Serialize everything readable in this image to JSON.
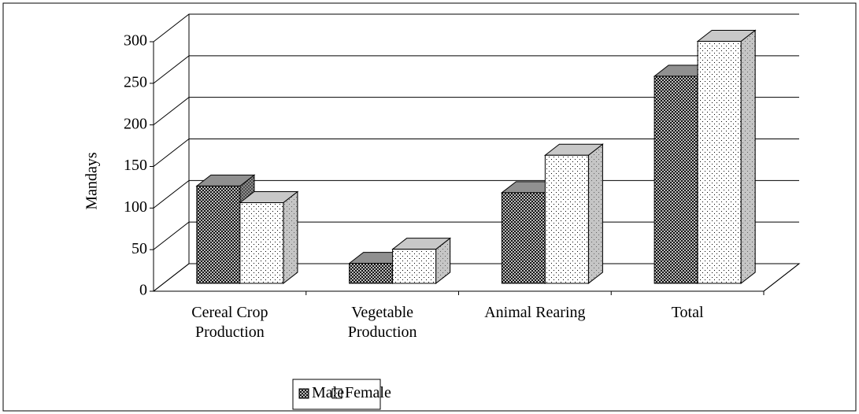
{
  "chart_data": {
    "type": "bar3d",
    "y_label": "Mandays",
    "categories": [
      "Cereal Crop Production",
      "Vegetable Production",
      "Animal Rearing",
      "Total"
    ],
    "series": [
      {
        "name": "Male",
        "color": "#808080",
        "values": [
          117,
          24,
          109,
          249
        ]
      },
      {
        "name": "Female",
        "color": "#ffffff",
        "values": [
          97,
          41,
          154,
          291
        ]
      }
    ],
    "ylim": [
      0,
      300
    ],
    "yticks": [
      0,
      50,
      100,
      150,
      200,
      250,
      300
    ],
    "grid": true,
    "legend": "bottom"
  }
}
